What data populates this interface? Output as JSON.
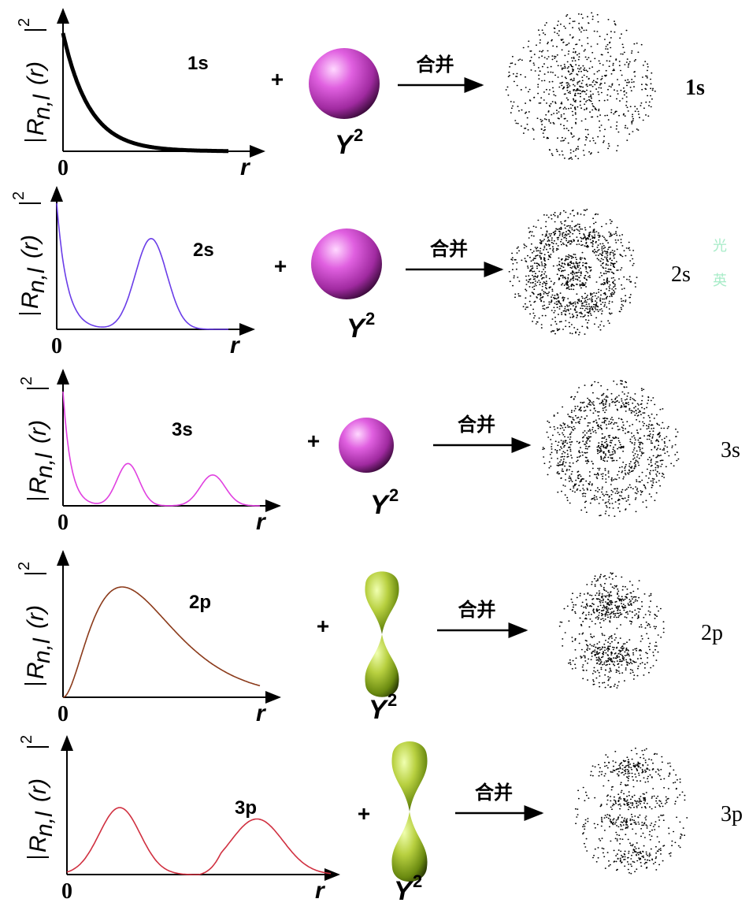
{
  "rows": [
    {
      "orbital": "1s",
      "y_axis": {
        "main": "R",
        "sub": "n,l",
        "arg": "(r)",
        "sup": "2"
      },
      "origin": "0",
      "x_axis": "r",
      "plus": "+",
      "angular": {
        "base": "Y",
        "sup": "2"
      },
      "arrow_label": "合并",
      "result": "1s"
    },
    {
      "orbital": "2s",
      "y_axis": {
        "main": "R",
        "sub": "n,l",
        "arg": "(r)",
        "sup": "2"
      },
      "origin": "0",
      "x_axis": "r",
      "plus": "+",
      "angular": {
        "base": "Y",
        "sup": "2"
      },
      "arrow_label": "合并",
      "result": "2s"
    },
    {
      "orbital": "3s",
      "y_axis": {
        "main": "R",
        "sub": "n,l",
        "arg": "(r)",
        "sup": "2"
      },
      "origin": "0",
      "x_axis": "r",
      "plus": "+",
      "angular": {
        "base": "Y",
        "sup": "2"
      },
      "arrow_label": "合并",
      "result": "3s"
    },
    {
      "orbital": "2p",
      "y_axis": {
        "main": "R",
        "sub": "n,l",
        "arg": "(r)",
        "sup": "2"
      },
      "origin": "0",
      "x_axis": "r",
      "plus": "+",
      "angular": {
        "base": "Y",
        "sup": "2"
      },
      "arrow_label": "合并",
      "result": "2p"
    },
    {
      "orbital": "3p",
      "y_axis": {
        "main": "R",
        "sub": "n,l",
        "arg": "(r)",
        "sup": "2"
      },
      "origin": "0",
      "x_axis": "r",
      "plus": "+",
      "angular": {
        "base": "Y",
        "sup": "2"
      },
      "arrow_label": "合并",
      "result": "3p"
    }
  ],
  "watermark": [
    "光",
    "英"
  ]
}
